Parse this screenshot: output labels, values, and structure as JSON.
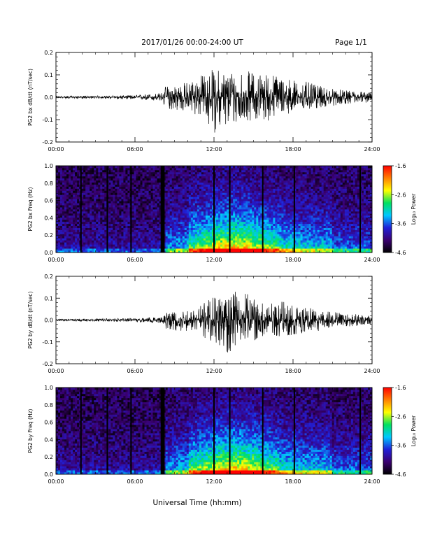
{
  "header": {
    "date_range": "2017/01/26  00:00-24:00 UT",
    "page": "Page 1/1"
  },
  "xlabel": "Universal Time (hh:mm)",
  "chart_data": [
    {
      "type": "line",
      "ylabel": "PG2 bx dB/dt (nT/sec)",
      "xlim": [
        0,
        24
      ],
      "ylim": [
        -0.2,
        0.2
      ],
      "x_ticks": [
        "00:00",
        "06:00",
        "12:00",
        "18:00",
        "24:00"
      ],
      "y_ticks": [
        "-0.2",
        "-0.1",
        "0.0",
        "0.1",
        "0.2"
      ],
      "envelope_hours": [
        0,
        2,
        4,
        6,
        7,
        8,
        8.3,
        9,
        10,
        11,
        12,
        13,
        14,
        15,
        16,
        17,
        18,
        19,
        20,
        21,
        22,
        23,
        24
      ],
      "envelope_upper": [
        0.005,
        0.006,
        0.007,
        0.01,
        0.015,
        0.02,
        0.05,
        0.06,
        0.07,
        0.1,
        0.13,
        0.12,
        0.13,
        0.11,
        0.11,
        0.1,
        0.08,
        0.07,
        0.05,
        0.04,
        0.03,
        0.03,
        0.02
      ],
      "envelope_lower": [
        -0.005,
        -0.006,
        -0.007,
        -0.01,
        -0.015,
        -0.02,
        -0.05,
        -0.06,
        -0.07,
        -0.09,
        -0.16,
        -0.14,
        -0.12,
        -0.1,
        -0.11,
        -0.08,
        -0.07,
        -0.06,
        -0.05,
        -0.04,
        -0.03,
        -0.03,
        -0.02
      ]
    },
    {
      "type": "heatmap",
      "ylabel": "PG2 bx Freq (Hz)",
      "xlim": [
        0,
        24
      ],
      "ylim": [
        0,
        1.0
      ],
      "x_ticks": [
        "00:00",
        "06:00",
        "12:00",
        "18:00",
        "24:00"
      ],
      "y_ticks": [
        "0.0",
        "0.2",
        "0.4",
        "0.6",
        "0.8",
        "1.0"
      ],
      "colorbar": {
        "label": "Log₁₀ Power",
        "range": [
          -4.6,
          -1.6
        ],
        "ticks": [
          "-1.6",
          "-2.6",
          "-3.6",
          "-4.6"
        ],
        "colors": [
          "#000000",
          "#3a0070",
          "#2020d8",
          "#00c8ff",
          "#00e060",
          "#ffff00",
          "#ff8000",
          "#ff0000"
        ]
      },
      "data_gap_hours": [
        1.9,
        3.9,
        5.7,
        8.0,
        8.1,
        8.2,
        12.0,
        13.2,
        15.7,
        18.1,
        23.1
      ],
      "activity_peak_hours": [
        11,
        17
      ]
    },
    {
      "type": "line",
      "ylabel": "PG2 by dB/dt (nT/sec)",
      "xlim": [
        0,
        24
      ],
      "ylim": [
        -0.2,
        0.2
      ],
      "x_ticks": [
        "00:00",
        "06:00",
        "12:00",
        "18:00",
        "24:00"
      ],
      "y_ticks": [
        "-0.2",
        "-0.1",
        "0.0",
        "0.1",
        "0.2"
      ],
      "envelope_hours": [
        0,
        2,
        4,
        6,
        7,
        8,
        8.3,
        9,
        10,
        11,
        12,
        13,
        14,
        15,
        16,
        17,
        18,
        19,
        20,
        21,
        22,
        23,
        24
      ],
      "envelope_upper": [
        0.004,
        0.006,
        0.007,
        0.01,
        0.012,
        0.015,
        0.04,
        0.05,
        0.05,
        0.07,
        0.12,
        0.1,
        0.15,
        0.1,
        0.08,
        0.09,
        0.07,
        0.06,
        0.05,
        0.04,
        0.03,
        0.03,
        0.02
      ],
      "envelope_lower": [
        -0.004,
        -0.006,
        -0.007,
        -0.01,
        -0.012,
        -0.015,
        -0.04,
        -0.05,
        -0.05,
        -0.07,
        -0.11,
        -0.17,
        -0.1,
        -0.1,
        -0.08,
        -0.08,
        -0.07,
        -0.06,
        -0.05,
        -0.04,
        -0.03,
        -0.03,
        -0.02
      ]
    },
    {
      "type": "heatmap",
      "ylabel": "PG2 by Freq (Hz)",
      "xlim": [
        0,
        24
      ],
      "ylim": [
        0,
        1.0
      ],
      "x_ticks": [
        "00:00",
        "06:00",
        "12:00",
        "18:00",
        "24:00"
      ],
      "y_ticks": [
        "0.0",
        "0.2",
        "0.4",
        "0.6",
        "0.8",
        "1.0"
      ],
      "colorbar": {
        "label": "Log₁₀ Power",
        "range": [
          -4.6,
          -1.6
        ],
        "ticks": [
          "-1.6",
          "-2.6",
          "-3.6",
          "-4.6"
        ],
        "colors": [
          "#000000",
          "#3a0070",
          "#2020d8",
          "#00c8ff",
          "#00e060",
          "#ffff00",
          "#ff8000",
          "#ff0000"
        ]
      },
      "data_gap_hours": [
        1.9,
        3.9,
        5.7,
        8.0,
        8.1,
        8.2,
        12.0,
        13.2,
        15.7,
        18.1,
        23.1
      ],
      "activity_peak_hours": [
        11,
        17
      ]
    }
  ]
}
